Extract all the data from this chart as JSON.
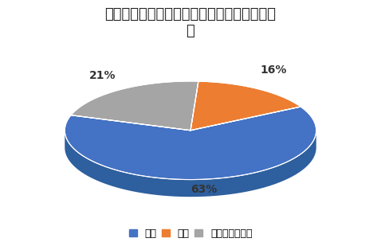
{
  "title": "インプレッサスポーツの乗り心地の満足度調\n査",
  "slices": [
    63,
    16,
    21
  ],
  "labels": [
    "満足",
    "不満",
    "どちらでもない"
  ],
  "colors_top": [
    "#4472C4",
    "#ED7D31",
    "#A5A5A5"
  ],
  "colors_side": [
    "#2E5F9E",
    "#C4651A",
    "#888888"
  ],
  "pct_labels": [
    "63%",
    "16%",
    "21%"
  ],
  "startangle_deg": 162,
  "title_fontsize": 13,
  "legend_fontsize": 9,
  "pct_fontsize": 10,
  "background_color": "#FFFFFF"
}
